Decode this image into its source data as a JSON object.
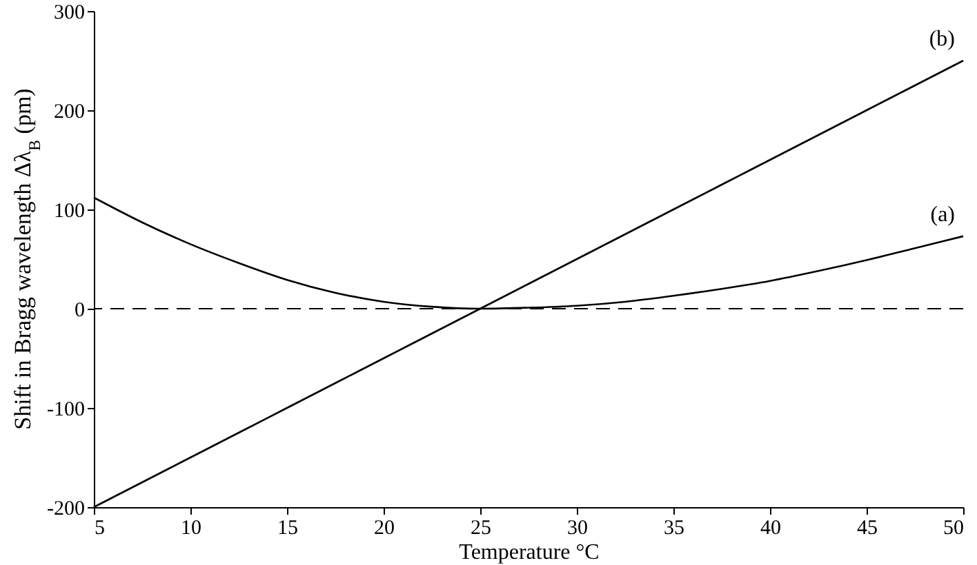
{
  "chart_data": {
    "type": "line",
    "xlabel": "Temperature °C",
    "ylabel": "Shift in Bragg wavelength Δλ$_{B}$ (pm)",
    "x": [
      5,
      7.5,
      10,
      12.5,
      15,
      17.5,
      20,
      22.5,
      25,
      27.5,
      30,
      32.5,
      35,
      37.5,
      40,
      42.5,
      45,
      47.5,
      50
    ],
    "series": [
      {
        "name": "(a)",
        "color": "#000000",
        "values": [
          112,
          87,
          65,
          46,
          29,
          16,
          7,
          2,
          0,
          1,
          3,
          7,
          13,
          20,
          28,
          38,
          49,
          61,
          73
        ]
      },
      {
        "name": "(b)",
        "color": "#000000",
        "values": [
          -200,
          -175,
          -150,
          -125,
          -100,
          -75,
          -50,
          -25,
          0,
          25,
          50,
          75,
          100,
          125,
          150,
          175,
          200,
          225,
          250
        ]
      }
    ],
    "xlim": [
      5,
      50
    ],
    "xticks": [
      5,
      10,
      15,
      20,
      25,
      30,
      35,
      40,
      45,
      50
    ],
    "ylim": [
      -200,
      300
    ],
    "yticks": [
      -200,
      -100,
      0,
      100,
      200,
      300
    ],
    "ref_lines": [
      {
        "axis": "y",
        "value": 0,
        "line_style": "dashed",
        "color": "#000000"
      }
    ],
    "grid": false,
    "line_style": "solid",
    "marker": "none"
  }
}
